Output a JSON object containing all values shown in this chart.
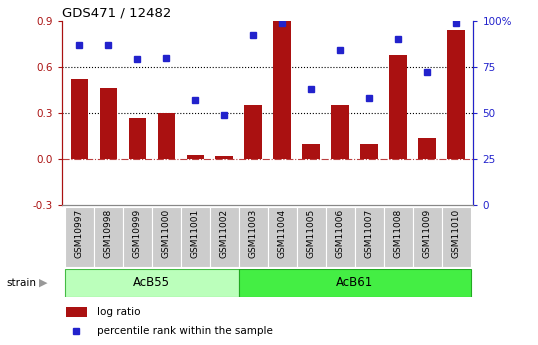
{
  "title": "GDS471 / 12482",
  "samples": [
    "GSM10997",
    "GSM10998",
    "GSM10999",
    "GSM11000",
    "GSM11001",
    "GSM11002",
    "GSM11003",
    "GSM11004",
    "GSM11005",
    "GSM11006",
    "GSM11007",
    "GSM11008",
    "GSM11009",
    "GSM11010"
  ],
  "log_ratio": [
    0.52,
    0.46,
    0.27,
    0.3,
    0.03,
    0.02,
    0.35,
    0.9,
    0.1,
    0.35,
    0.1,
    0.68,
    0.14,
    0.84
  ],
  "percentile_rank": [
    87,
    87,
    79,
    80,
    57,
    49,
    92,
    99,
    63,
    84,
    58,
    90,
    72,
    99
  ],
  "group1_label": "AcB55",
  "group1_count": 6,
  "group2_label": "AcB61",
  "group2_count": 8,
  "bar_color": "#AA1111",
  "dot_color": "#2222CC",
  "group1_color": "#BBFFBB",
  "group2_color": "#44EE44",
  "sample_bg": "#CCCCCC",
  "ylim_left": [
    -0.3,
    0.9
  ],
  "ylim_right": [
    0,
    100
  ],
  "yticks_left": [
    -0.3,
    0.0,
    0.3,
    0.6,
    0.9
  ],
  "yticks_right": [
    0,
    25,
    50,
    75,
    100
  ],
  "hline_dotted1": 0.3,
  "hline_dotted2": 0.6,
  "legend_log_ratio": "log ratio",
  "legend_percentile": "percentile rank within the sample",
  "strain_label": "strain"
}
